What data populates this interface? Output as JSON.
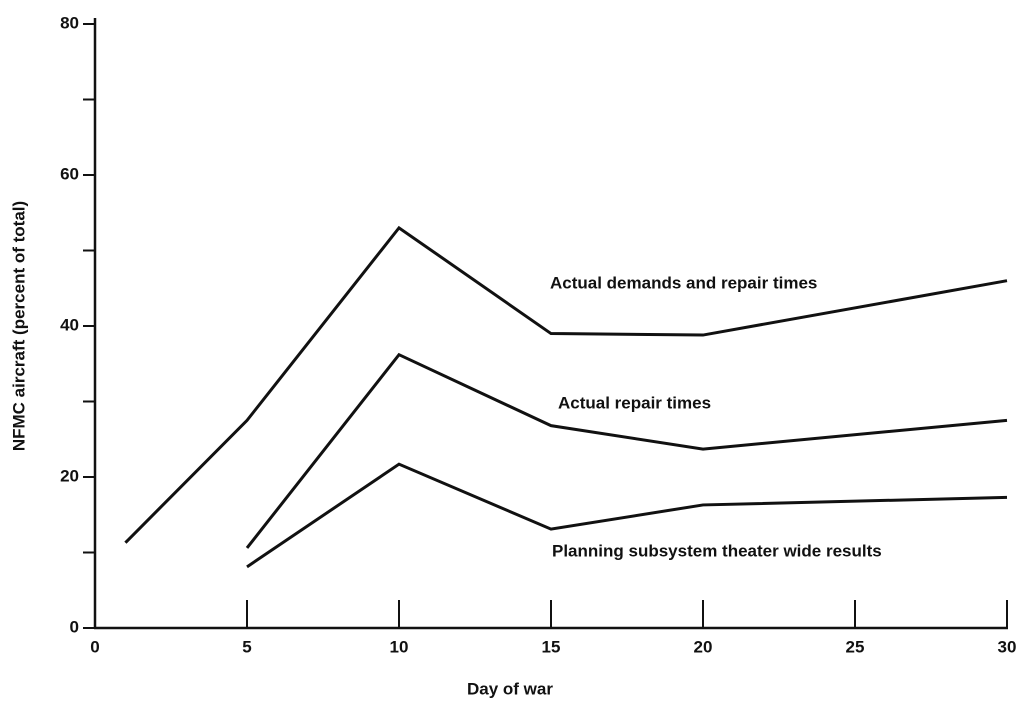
{
  "chart_data": {
    "type": "line",
    "xlabel": "Day of war",
    "ylabel": "NFMC aircraft  (percent of total)",
    "xlim": [
      0,
      30
    ],
    "xticks": [
      0,
      5,
      10,
      15,
      20,
      25,
      30
    ],
    "ylim": [
      0,
      80
    ],
    "yticks": [
      0,
      20,
      40,
      60,
      80
    ],
    "yminor_ticks": [
      10,
      30,
      50,
      70
    ],
    "color": "#111111",
    "series": [
      {
        "name": "Actual demands and repair times",
        "color": "#111111",
        "x": [
          1,
          5,
          10,
          15,
          20,
          30
        ],
        "values": [
          11.3,
          27.5,
          53,
          39,
          38.8,
          46
        ]
      },
      {
        "name": "Actual repair times",
        "color": "#111111",
        "x": [
          5,
          10,
          15,
          20,
          30
        ],
        "values": [
          10.6,
          36.2,
          26.8,
          23.7,
          27.5
        ]
      },
      {
        "name": "Planning subsystem theater wide results",
        "color": "#111111",
        "x": [
          5,
          10,
          15,
          20,
          30
        ],
        "values": [
          8.1,
          21.7,
          13.1,
          16.3,
          17.3
        ]
      }
    ]
  }
}
